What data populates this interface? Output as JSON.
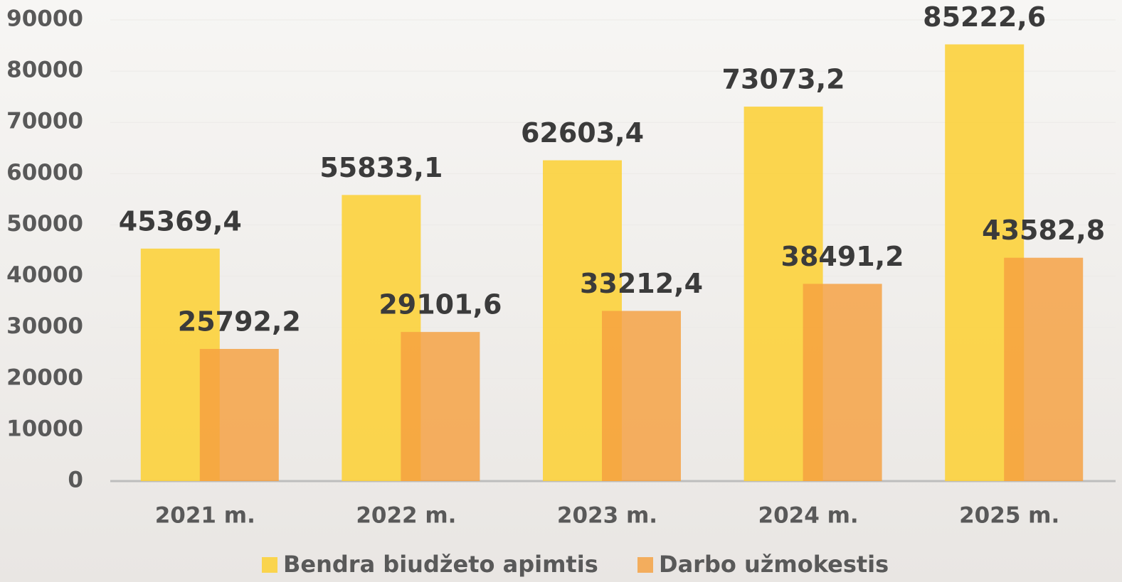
{
  "chart_data": {
    "type": "bar",
    "categories": [
      "2021 m.",
      "2022 m.",
      "2023 m.",
      "2024 m.",
      "2025 m."
    ],
    "series": [
      {
        "name": "Bendra biudžeto apimtis",
        "color": "#fcd23c",
        "values": [
          45369.4,
          55833.1,
          62603.4,
          73073.2,
          85222.6
        ],
        "value_labels": [
          "45369,4",
          "55833,1",
          "62603,4",
          "73073,2",
          "85222,6"
        ]
      },
      {
        "name": "Darbo užmokestis",
        "color": "#f5a040",
        "values": [
          25792.2,
          29101.6,
          33212.4,
          38491.2,
          43582.8
        ],
        "value_labels": [
          "25792,2",
          "29101,6",
          "33212,4",
          "38491,2",
          "43582,8"
        ]
      }
    ],
    "ylim": [
      0,
      90000
    ],
    "yticks": [
      0,
      10000,
      20000,
      30000,
      40000,
      50000,
      60000,
      70000,
      80000,
      90000
    ],
    "grid": true,
    "legend": "bottom"
  }
}
